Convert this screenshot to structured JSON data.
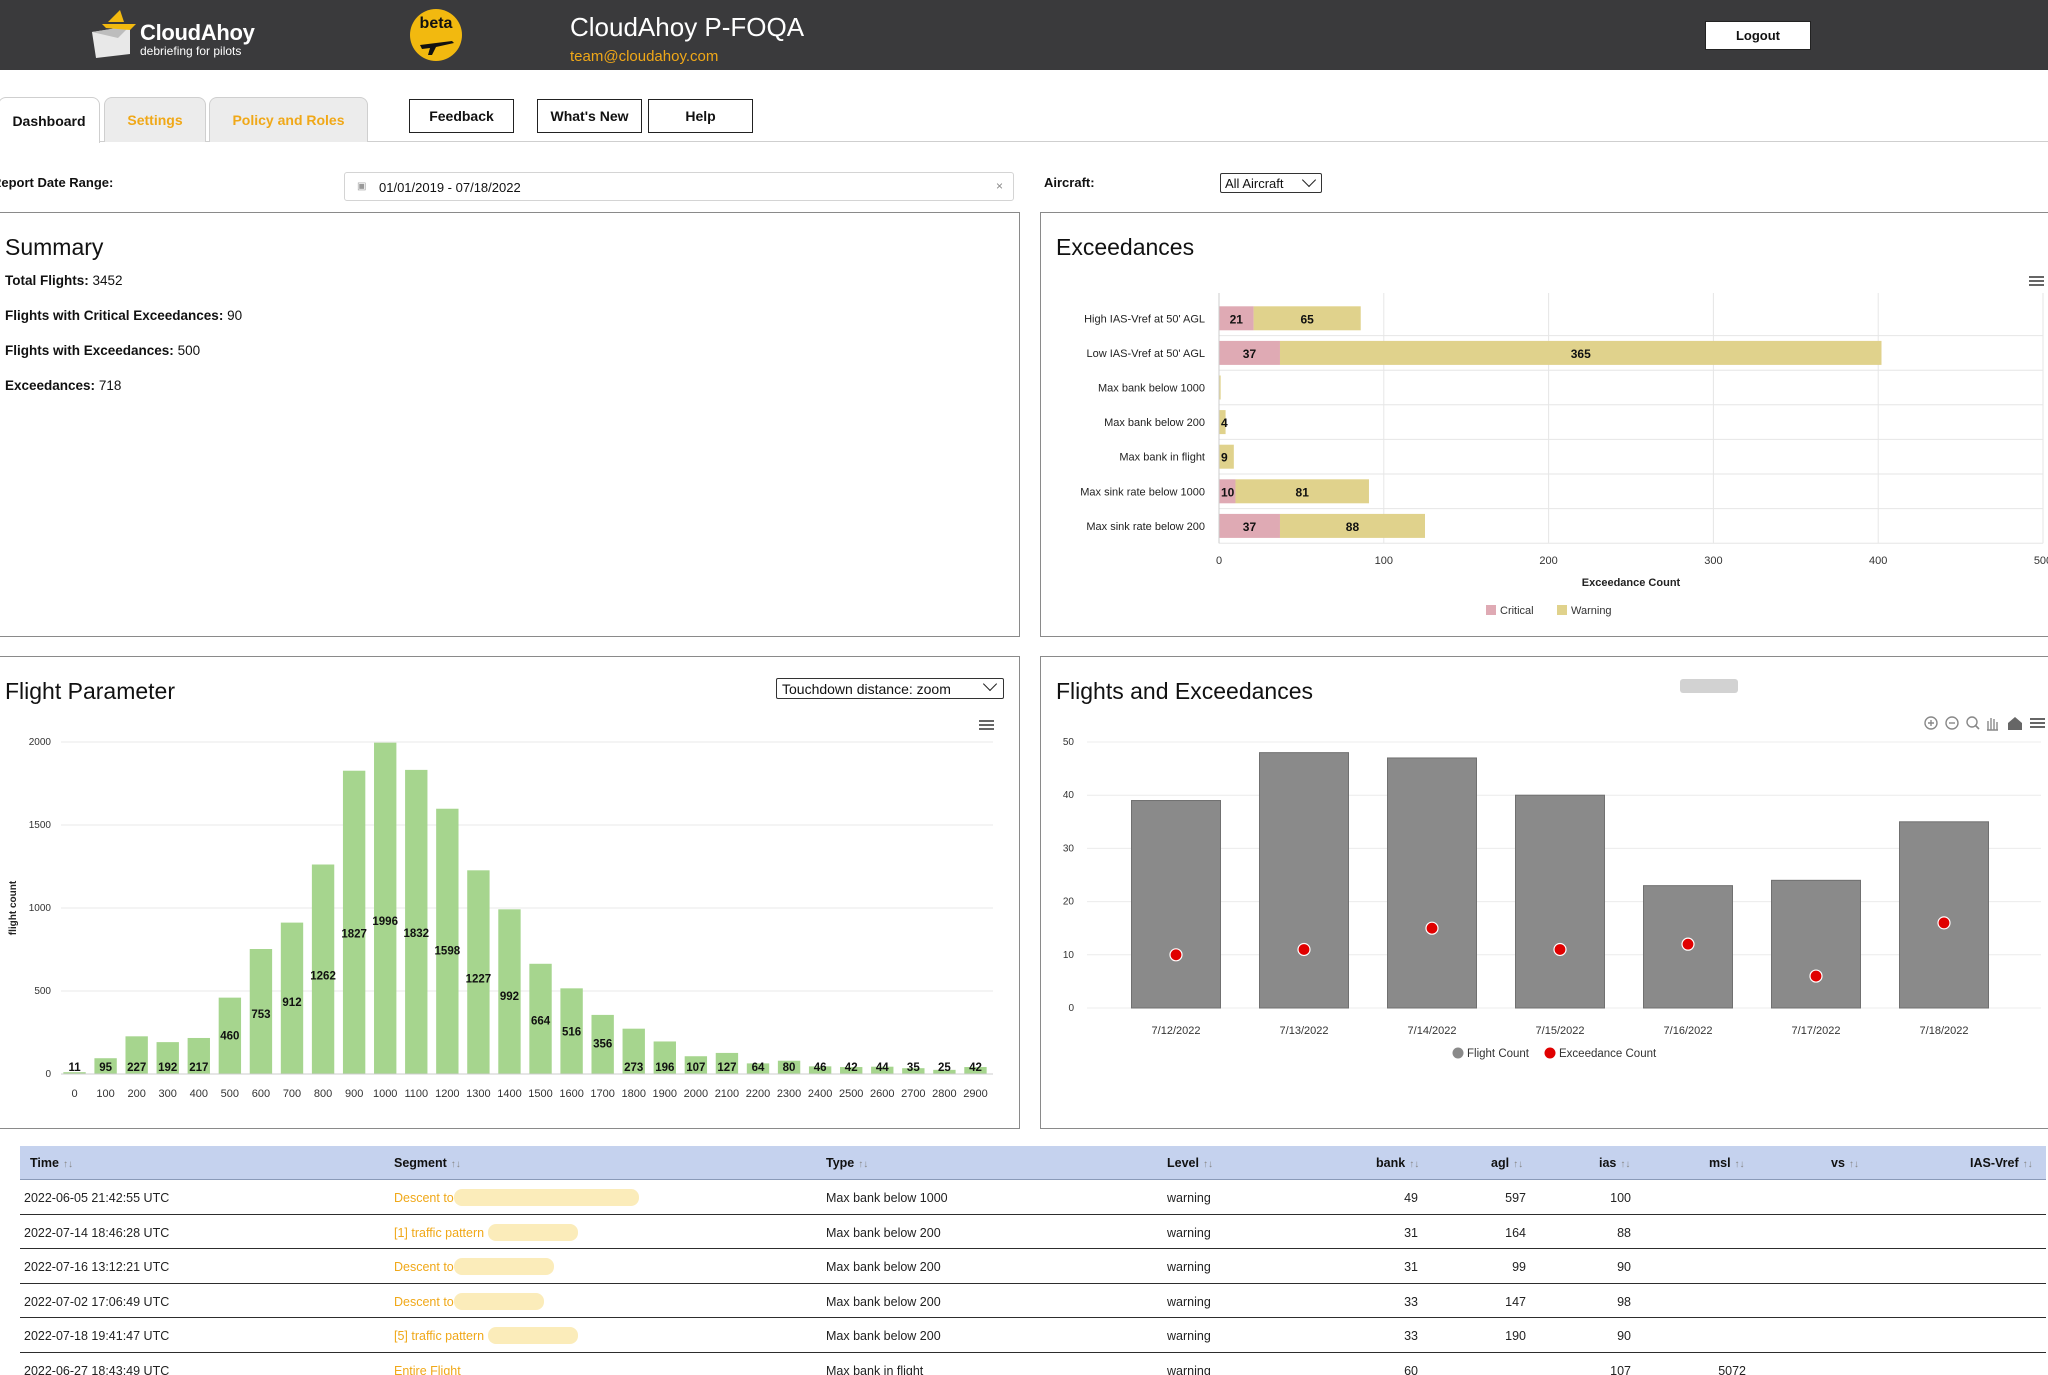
{
  "header": {
    "logo_name": "CloudAhoy",
    "logo_tagline": "debriefing for pilots",
    "beta_label": "beta",
    "app_title": "CloudAhoy P-FOQA",
    "email": "team@cloudahoy.com",
    "logout_label": "Logout"
  },
  "tabs": [
    {
      "label": "Dashboard",
      "active": true
    },
    {
      "label": "Settings",
      "active": false
    },
    {
      "label": "Policy and Roles",
      "active": false
    }
  ],
  "toolbar": {
    "feedback_label": "Feedback",
    "whats_new_label": "What's New",
    "help_label": "Help"
  },
  "filters": {
    "date_range_label": "Report Date Range:",
    "date_range_value": "01/01/2019 - 07/18/2022",
    "clear_glyph": "×",
    "aircraft_label": "Aircraft:",
    "aircraft_value": "All Aircraft"
  },
  "summary": {
    "title": "Summary",
    "items": [
      {
        "label": "Total Flights:",
        "value": "3452"
      },
      {
        "label": "Flights with Critical Exceedances:",
        "value": "90"
      },
      {
        "label": "Flights with Exceedances:",
        "value": "500"
      },
      {
        "label": "Exceedances:",
        "value": "718"
      }
    ]
  },
  "colors": {
    "header_bg": "#3a3a3c",
    "accent": "#f0a818",
    "critical": "#dfaab4",
    "warning": "#e0d28c",
    "histogram_bar": "#a6d58e",
    "flight_count": "#8a8a8a",
    "exceedance_count": "#e00000",
    "table_header": "#c5d2ee"
  },
  "exceedances": {
    "title": "Exceedances",
    "chart_data": {
      "type": "bar",
      "orientation": "horizontal",
      "stacked": true,
      "categories": [
        "High IAS-Vref at 50' AGL",
        "Low IAS-Vref at 50' AGL",
        "Max bank below 1000",
        "Max bank below 200",
        "Max bank in flight",
        "Max sink rate below 1000",
        "Max sink rate below 200"
      ],
      "series": [
        {
          "name": "Critical",
          "values": [
            21,
            37,
            0,
            0,
            0,
            10,
            37
          ]
        },
        {
          "name": "Warning",
          "values": [
            65,
            365,
            1,
            4,
            9,
            81,
            88
          ]
        }
      ],
      "labels": {
        "Critical": [
          "21",
          "37",
          "",
          "",
          "",
          "10",
          "37"
        ],
        "Warning": [
          "65",
          "365",
          "",
          "4",
          "9",
          "81",
          "88"
        ]
      },
      "xlabel": "Exceedance Count",
      "xlim": [
        0,
        500
      ],
      "xticks": [
        0,
        100,
        200,
        300,
        400,
        500
      ],
      "legend": "bottom",
      "grid": true
    }
  },
  "flight_parameter": {
    "title": "Flight Parameter",
    "select_value": "Touchdown distance: zoom",
    "chart_data": {
      "type": "bar",
      "categories": [
        "0",
        "100",
        "200",
        "300",
        "400",
        "500",
        "600",
        "700",
        "800",
        "900",
        "1000",
        "1100",
        "1200",
        "1300",
        "1400",
        "1500",
        "1600",
        "1700",
        "1800",
        "1900",
        "2000",
        "2100",
        "2200",
        "2300",
        "2400",
        "2500",
        "2600",
        "2700",
        "2800",
        "2900"
      ],
      "values": [
        11,
        95,
        227,
        192,
        217,
        460,
        753,
        912,
        1262,
        1827,
        1996,
        1832,
        1598,
        1227,
        992,
        664,
        516,
        356,
        273,
        196,
        107,
        127,
        64,
        80,
        46,
        42,
        44,
        35,
        25,
        42
      ],
      "ylabel": "flight count",
      "ylim": [
        0,
        2000
      ],
      "yticks": [
        0,
        500,
        1000,
        1500,
        2000
      ],
      "grid": true
    }
  },
  "flights_exceedances": {
    "title": "Flights and Exceedances",
    "chart_data": {
      "type": "bar",
      "categories": [
        "7/12/2022",
        "7/13/2022",
        "7/14/2022",
        "7/15/2022",
        "7/16/2022",
        "7/17/2022",
        "7/18/2022"
      ],
      "series": [
        {
          "name": "Flight Count",
          "type": "bar",
          "values": [
            39,
            48,
            47,
            40,
            23,
            24,
            35
          ]
        },
        {
          "name": "Exceedance Count",
          "type": "scatter",
          "values": [
            10,
            11,
            15,
            11,
            12,
            6,
            16
          ]
        }
      ],
      "ylim": [
        0,
        50
      ],
      "yticks": [
        0,
        10,
        20,
        30,
        40,
        50
      ],
      "legend": "bottom",
      "grid": true
    }
  },
  "table": {
    "columns": [
      "Time",
      "Segment",
      "Type",
      "Level",
      "bank",
      "agl",
      "ias",
      "msl",
      "vs",
      "IAS-Vref"
    ],
    "sort_glyph": "↑↓",
    "rows": [
      {
        "time": "2022-06-05 21:42:55 UTC",
        "segment": "Descent to",
        "type": "Max bank below 1000",
        "level": "warning",
        "bank": "49",
        "agl": "597",
        "ias": "100",
        "msl": "",
        "vs": "",
        "iasvref": ""
      },
      {
        "time": "2022-07-14 18:46:28 UTC",
        "segment": "[1] traffic pattern",
        "type": "Max bank below 200",
        "level": "warning",
        "bank": "31",
        "agl": "164",
        "ias": "88",
        "msl": "",
        "vs": "",
        "iasvref": ""
      },
      {
        "time": "2022-07-16 13:12:21 UTC",
        "segment": "Descent to",
        "type": "Max bank below 200",
        "level": "warning",
        "bank": "31",
        "agl": "99",
        "ias": "90",
        "msl": "",
        "vs": "",
        "iasvref": ""
      },
      {
        "time": "2022-07-02 17:06:49 UTC",
        "segment": "Descent to",
        "type": "Max bank below 200",
        "level": "warning",
        "bank": "33",
        "agl": "147",
        "ias": "98",
        "msl": "",
        "vs": "",
        "iasvref": ""
      },
      {
        "time": "2022-07-18 19:41:47 UTC",
        "segment": "[5] traffic pattern",
        "type": "Max bank below 200",
        "level": "warning",
        "bank": "33",
        "agl": "190",
        "ias": "90",
        "msl": "",
        "vs": "",
        "iasvref": ""
      },
      {
        "time": "2022-06-27 18:43:49 UTC",
        "segment": "Entire Flight",
        "type": "Max bank in flight",
        "level": "warning",
        "bank": "60",
        "agl": "",
        "ias": "107",
        "msl": "5072",
        "vs": "",
        "iasvref": ""
      }
    ]
  }
}
